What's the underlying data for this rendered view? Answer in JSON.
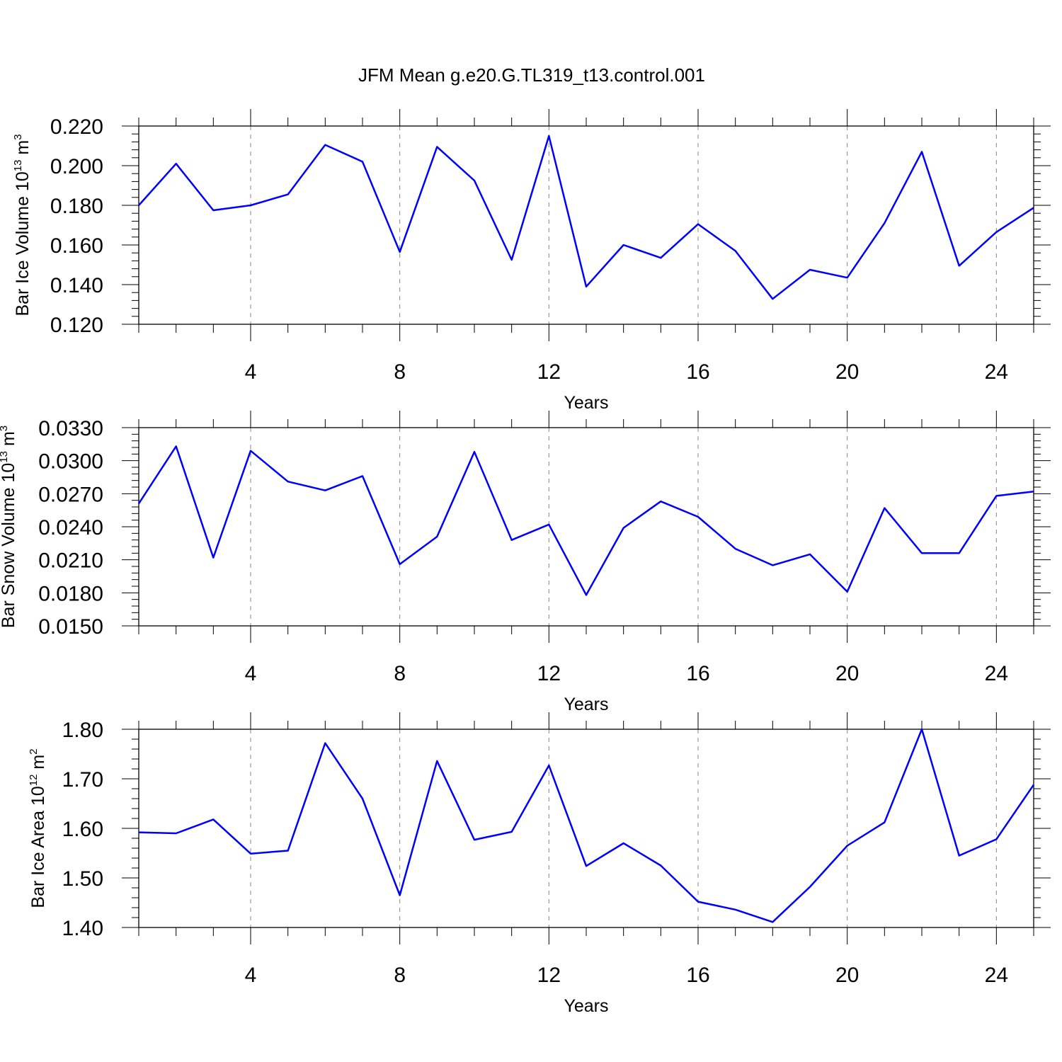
{
  "title": "JFM Mean g.e20.G.TL319_t13.control.001",
  "chart_data": [
    {
      "type": "line",
      "ylabel": {
        "text": "Bar Ice Volume 10",
        "exp": "13",
        "unit": " m",
        "unit_exp": "3"
      },
      "xlabel": "Years",
      "xlim": [
        1,
        25
      ],
      "xticks": [
        4,
        8,
        12,
        16,
        20,
        24
      ],
      "ylim": [
        0.12,
        0.22
      ],
      "yticks": [
        "0.120",
        "0.140",
        "0.160",
        "0.180",
        "0.200",
        "0.220"
      ],
      "grid": "vertical dashed at major x ticks",
      "color": "#0000ff",
      "x": [
        1,
        2,
        3,
        4,
        5,
        6,
        7,
        8,
        9,
        10,
        11,
        12,
        13,
        14,
        15,
        16,
        17,
        18,
        19,
        20,
        21,
        22,
        23,
        24,
        25
      ],
      "y": [
        0.18,
        0.201,
        0.1775,
        0.18,
        0.1855,
        0.2105,
        0.202,
        0.1565,
        0.2095,
        0.1925,
        0.1525,
        0.215,
        0.139,
        0.16,
        0.1535,
        0.1705,
        0.157,
        0.1328,
        0.1475,
        0.1435,
        0.171,
        0.207,
        0.1495,
        0.1665,
        0.1788
      ]
    },
    {
      "type": "line",
      "ylabel": {
        "text": "Bar Snow Volume 10",
        "exp": "13",
        "unit": " m",
        "unit_exp": "3"
      },
      "xlabel": "Years",
      "xlim": [
        1,
        25
      ],
      "xticks": [
        4,
        8,
        12,
        16,
        20,
        24
      ],
      "ylim": [
        0.015,
        0.033
      ],
      "yticks": [
        "0.0150",
        "0.0180",
        "0.0210",
        "0.0240",
        "0.0270",
        "0.0300",
        "0.0330"
      ],
      "grid": "vertical dashed at major x ticks",
      "color": "#0000ff",
      "x": [
        1,
        2,
        3,
        4,
        5,
        6,
        7,
        8,
        9,
        10,
        11,
        12,
        13,
        14,
        15,
        16,
        17,
        18,
        19,
        20,
        21,
        22,
        23,
        24,
        25
      ],
      "y": [
        0.0261,
        0.0313,
        0.0212,
        0.0309,
        0.0281,
        0.0273,
        0.0286,
        0.0206,
        0.0231,
        0.0308,
        0.0228,
        0.0242,
        0.0178,
        0.0239,
        0.0263,
        0.0249,
        0.022,
        0.0205,
        0.0215,
        0.0181,
        0.0257,
        0.0216,
        0.0216,
        0.0268,
        0.0272
      ]
    },
    {
      "type": "line",
      "ylabel": {
        "text": "Bar Ice Area 10",
        "exp": "12",
        "unit": " m",
        "unit_exp": "2"
      },
      "xlabel": "Years",
      "xlim": [
        1,
        25
      ],
      "xticks": [
        4,
        8,
        12,
        16,
        20,
        24
      ],
      "ylim": [
        1.4,
        1.8
      ],
      "yticks": [
        "1.40",
        "1.50",
        "1.60",
        "1.70",
        "1.80"
      ],
      "grid": "vertical dashed at major x ticks",
      "color": "#0000ff",
      "x": [
        1,
        2,
        3,
        4,
        5,
        6,
        7,
        8,
        9,
        10,
        11,
        12,
        13,
        14,
        15,
        16,
        17,
        18,
        19,
        20,
        21,
        22,
        23,
        24,
        25
      ],
      "y": [
        1.592,
        1.59,
        1.618,
        1.549,
        1.555,
        1.772,
        1.66,
        1.465,
        1.736,
        1.577,
        1.593,
        1.727,
        1.524,
        1.57,
        1.525,
        1.452,
        1.436,
        1.411,
        1.482,
        1.565,
        1.612,
        1.8,
        1.545,
        1.578,
        1.688
      ]
    }
  ]
}
